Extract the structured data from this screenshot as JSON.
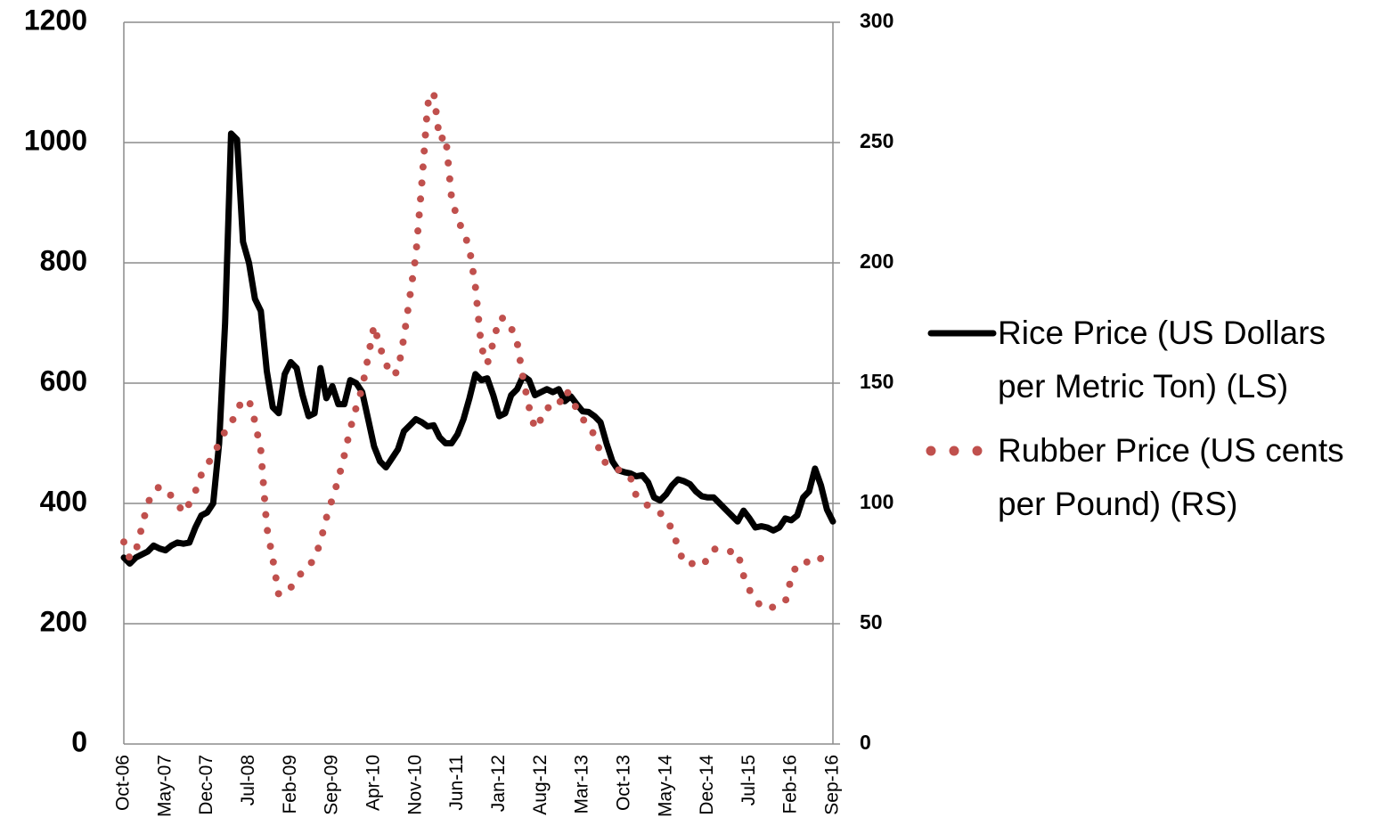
{
  "chart_data": {
    "type": "line",
    "categories": [
      "Oct-06",
      null,
      null,
      null,
      null,
      null,
      null,
      "May-07",
      null,
      null,
      null,
      null,
      null,
      null,
      "Dec-07",
      null,
      null,
      null,
      null,
      null,
      null,
      "Jul-08",
      null,
      null,
      null,
      null,
      null,
      null,
      "Feb-09",
      null,
      null,
      null,
      null,
      null,
      null,
      "Sep-09",
      null,
      null,
      null,
      null,
      null,
      null,
      "Apr-10",
      null,
      null,
      null,
      null,
      null,
      null,
      "Nov-10",
      null,
      null,
      null,
      null,
      null,
      null,
      "Jun-11",
      null,
      null,
      null,
      null,
      null,
      null,
      "Jan-12",
      null,
      null,
      null,
      null,
      null,
      null,
      "Aug-12",
      null,
      null,
      null,
      null,
      null,
      null,
      "Mar-13",
      null,
      null,
      null,
      null,
      null,
      null,
      "Oct-13",
      null,
      null,
      null,
      null,
      null,
      null,
      "May-14",
      null,
      null,
      null,
      null,
      null,
      null,
      "Dec-14",
      null,
      null,
      null,
      null,
      null,
      null,
      "Jul-15",
      null,
      null,
      null,
      null,
      null,
      null,
      "Feb-16",
      null,
      null,
      null,
      null,
      null,
      null,
      "Sep-16"
    ],
    "series": [
      {
        "name": "Rice Price (US Dollars per Metric Ton) (LS)",
        "color": "#000000",
        "style": "solid",
        "values": [
          310,
          300,
          310,
          315,
          320,
          330,
          325,
          322,
          330,
          335,
          333,
          335,
          360,
          380,
          385,
          400,
          500,
          700,
          1015,
          1005,
          835,
          800,
          740,
          720,
          620,
          560,
          550,
          615,
          635,
          625,
          580,
          545,
          550,
          625,
          575,
          595,
          565,
          565,
          605,
          600,
          585,
          540,
          495,
          470,
          460,
          475,
          490,
          520,
          530,
          540,
          535,
          528,
          530,
          510,
          500,
          500,
          515,
          540,
          575,
          615,
          605,
          608,
          580,
          545,
          550,
          580,
          590,
          612,
          605,
          580,
          585,
          590,
          585,
          590,
          570,
          578,
          565,
          553,
          552,
          545,
          535,
          500,
          470,
          455,
          452,
          450,
          445,
          447,
          435,
          410,
          405,
          415,
          430,
          440,
          437,
          432,
          420,
          412,
          410,
          410,
          400,
          390,
          380,
          370,
          388,
          375,
          360,
          362,
          360,
          355,
          360,
          375,
          372,
          380,
          410,
          420,
          458,
          430,
          390,
          370
        ]
      },
      {
        "name": "Rubber Price (US cents per Pound) (RS)",
        "color": "#c0504d",
        "style": "dotted",
        "axis": "y2",
        "values": [
          84,
          77,
          80,
          90,
          100,
          105,
          107,
          106,
          103,
          100,
          96,
          100,
          105,
          112,
          116,
          120,
          125,
          130,
          133,
          139,
          143,
          143,
          134,
          122,
          90,
          77,
          62,
          64,
          65,
          68,
          72,
          74,
          77,
          84,
          94,
          102,
          110,
          120,
          131,
          140,
          148,
          161,
          174,
          165,
          158,
          153,
          155,
          169,
          186,
          203,
          233,
          266,
          271,
          251,
          253,
          227,
          218,
          213,
          206,
          190,
          165,
          158,
          167,
          177,
          177,
          173,
          167,
          152,
          140,
          131,
          135,
          140,
          139,
          141,
          147,
          145,
          139,
          135,
          133,
          128,
          121,
          116,
          115,
          114,
          112,
          111,
          103,
          101,
          99,
          98,
          96,
          94,
          89,
          82,
          75,
          75,
          75,
          74,
          77,
          81,
          81,
          80,
          80,
          80,
          70,
          64,
          60,
          57,
          56,
          57,
          58,
          59,
          69,
          75,
          75,
          76,
          78,
          77,
          74,
          74
        ]
      }
    ],
    "ylim": [
      0,
      1200
    ],
    "yticks": [
      0,
      200,
      400,
      600,
      800,
      1000,
      1200
    ],
    "y2lim": [
      0,
      300
    ],
    "y2ticks": [
      0,
      50,
      100,
      150,
      200,
      250,
      300
    ],
    "grid": true,
    "legend": "right"
  }
}
